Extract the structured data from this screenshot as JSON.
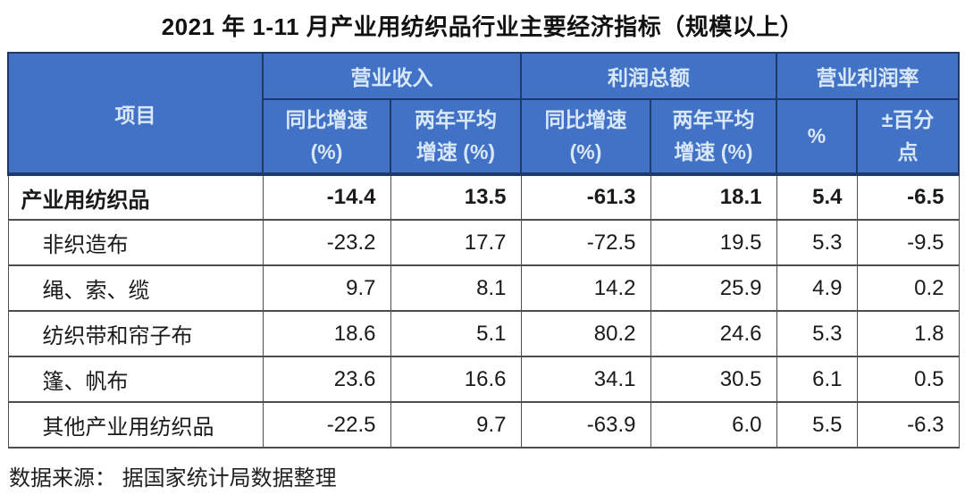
{
  "title": "2021 年 1-11 月产业用纺织品行业主要经济指标（规模以上）",
  "source": "数据来源： 据国家统计局数据整理",
  "colors": {
    "header_bg": "#4272C6",
    "header_text": "#D9E8F8",
    "header_border": "#1E3A66",
    "body_border": "#4D4D4D",
    "body_text": "#1A1A1A"
  },
  "table": {
    "item_header": "项目",
    "groups": [
      {
        "label": "营业收入",
        "sub": [
          {
            "l1": "同比增速",
            "l2": "(%)"
          },
          {
            "l1": "两年平均",
            "l2": "增速 (%)"
          }
        ]
      },
      {
        "label": "利润总额",
        "sub": [
          {
            "l1": "同比增速",
            "l2": "(%)"
          },
          {
            "l1": "两年平均",
            "l2": "增速 (%)"
          }
        ]
      },
      {
        "label": "营业利润率",
        "sub": [
          {
            "l1": "%",
            "l2": ""
          },
          {
            "l1": "±百分",
            "l2": "点"
          }
        ]
      }
    ],
    "rows": [
      {
        "label": "产业用纺织品",
        "values": [
          "-14.4",
          "13.5",
          "-61.3",
          "18.1",
          "5.4",
          "-6.5"
        ]
      },
      {
        "label": "非织造布",
        "values": [
          "-23.2",
          "17.7",
          "-72.5",
          "19.5",
          "5.3",
          "-9.5"
        ]
      },
      {
        "label": "绳、索、缆",
        "values": [
          "9.7",
          "8.1",
          "14.2",
          "25.9",
          "4.9",
          "0.2"
        ]
      },
      {
        "label": "纺织带和帘子布",
        "values": [
          "18.6",
          "5.1",
          "80.2",
          "24.6",
          "5.3",
          "1.8"
        ]
      },
      {
        "label": "篷、帆布",
        "values": [
          "23.6",
          "16.6",
          "34.1",
          "30.5",
          "6.1",
          "0.5"
        ]
      },
      {
        "label": "其他产业用纺织品",
        "values": [
          "-22.5",
          "9.7",
          "-63.9",
          "6.0",
          "5.5",
          "-6.3"
        ]
      }
    ]
  },
  "chart_data": {
    "type": "table",
    "title": "2021 年 1-11 月产业用纺织品行业主要经济指标（规模以上）",
    "columns": [
      "项目",
      "营业收入 同比增速 (%)",
      "营业收入 两年平均增速 (%)",
      "利润总额 同比增速 (%)",
      "利润总额 两年平均增速 (%)",
      "营业利润率 %",
      "营业利润率 ±百分点"
    ],
    "rows": [
      [
        "产业用纺织品",
        -14.4,
        13.5,
        -61.3,
        18.1,
        5.4,
        -6.5
      ],
      [
        "非织造布",
        -23.2,
        17.7,
        -72.5,
        19.5,
        5.3,
        -9.5
      ],
      [
        "绳、索、缆",
        9.7,
        8.1,
        14.2,
        25.9,
        4.9,
        0.2
      ],
      [
        "纺织带和帘子布",
        18.6,
        5.1,
        80.2,
        24.6,
        5.3,
        1.8
      ],
      [
        "篷、帆布",
        23.6,
        16.6,
        34.1,
        30.5,
        6.1,
        0.5
      ],
      [
        "其他产业用纺织品",
        -22.5,
        9.7,
        -63.9,
        6.0,
        5.5,
        -6.3
      ]
    ],
    "source": "数据来源： 据国家统计局数据整理"
  }
}
